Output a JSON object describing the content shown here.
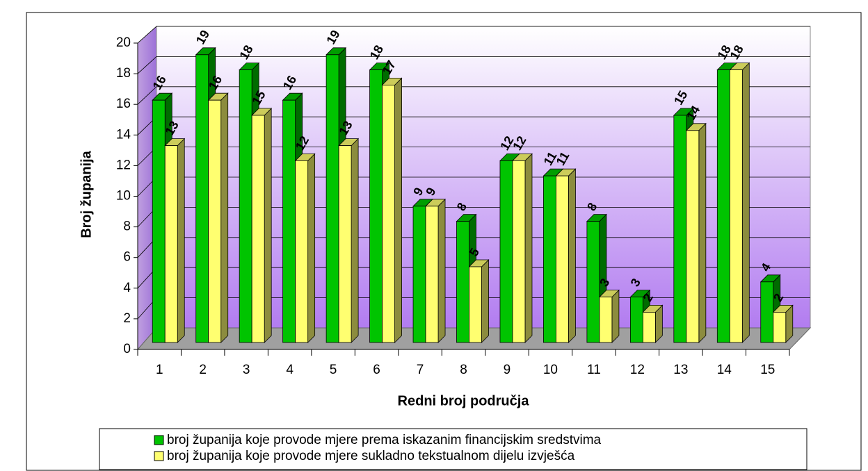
{
  "chart_data": {
    "type": "bar3d",
    "xlabel": "Redni broj područja",
    "ylabel": "Broj županija",
    "categories": [
      "1",
      "2",
      "3",
      "4",
      "5",
      "6",
      "7",
      "8",
      "9",
      "10",
      "11",
      "12",
      "13",
      "14",
      "15"
    ],
    "series": [
      {
        "name": "broj županija koje provode mjere prema iskazanim financijskim sredstvima",
        "color": "#00c400",
        "values": [
          16,
          19,
          18,
          16,
          19,
          18,
          9,
          8,
          12,
          11,
          8,
          3,
          15,
          18,
          4
        ]
      },
      {
        "name": "broj županija koje provode mjere sukladno tekstualnom dijelu izvješća",
        "color": "#ffff70",
        "values": [
          13,
          16,
          15,
          12,
          13,
          17,
          9,
          5,
          12,
          11,
          3,
          2,
          14,
          18,
          2
        ]
      }
    ],
    "ylim": [
      0,
      20
    ],
    "yticks": [
      0,
      2,
      4,
      6,
      8,
      10,
      12,
      14,
      16,
      18,
      20
    ],
    "grid": true
  }
}
